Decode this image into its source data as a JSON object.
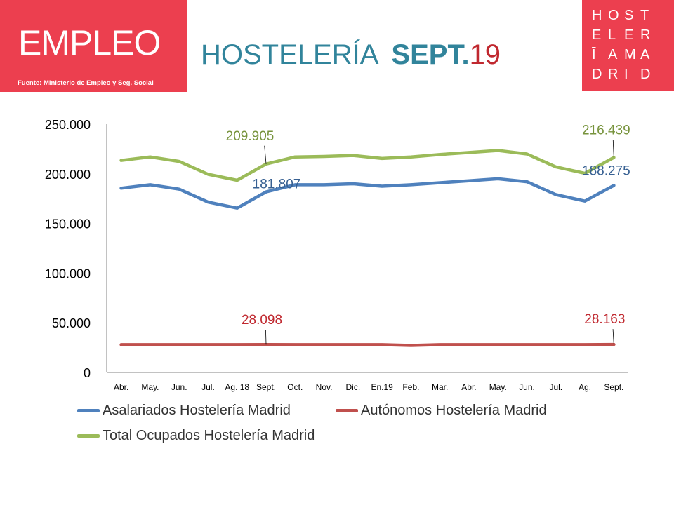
{
  "header": {
    "title": "EMPLEO",
    "source": "Fuente: Ministerio de Empleo y Seg. Social",
    "heading_main": "HOSTELERÍA",
    "heading_month": "SEPT.",
    "heading_year": "19"
  },
  "logo": {
    "letters": [
      "H",
      "O",
      "S",
      "T",
      "",
      "E",
      "L",
      "E",
      "R",
      "",
      "Ī",
      "A",
      "M",
      "A",
      "",
      "D",
      "R",
      "I",
      "D",
      ""
    ]
  },
  "colors": {
    "brand_red": "#ec3f4f",
    "heading_teal": "#31849b",
    "heading_red": "#c0282f"
  },
  "chart_data": {
    "type": "line",
    "categories": [
      "Abr.",
      "May.",
      "Jun.",
      "Jul.",
      "Ag. 18",
      "Sept.",
      "Oct.",
      "Nov.",
      "Dic.",
      "En.19",
      "Feb.",
      "Mar.",
      "Abr.",
      "May.",
      "Jun.",
      "Jul.",
      "Ag.",
      "Sept."
    ],
    "ylim": [
      0,
      250000
    ],
    "yticks": [
      0,
      50000,
      100000,
      150000,
      200000,
      250000
    ],
    "ytick_labels": [
      "0",
      "50.000",
      "100.000",
      "150.000",
      "200.000",
      "250.000"
    ],
    "legend_position": "bottom",
    "series": [
      {
        "name": "Asalariados Hostelería Madrid",
        "color": "#4f81bd",
        "values": [
          185500,
          189000,
          184500,
          171500,
          165500,
          181807,
          189000,
          189000,
          190000,
          187500,
          189000,
          191000,
          193000,
          195000,
          192000,
          179000,
          172500,
          188275
        ]
      },
      {
        "name": "Autónomos Hostelería Madrid",
        "color": "#c0504d",
        "values": [
          28000,
          28000,
          28000,
          28000,
          28000,
          28098,
          28000,
          28000,
          28000,
          28000,
          27200,
          28000,
          28000,
          28000,
          28000,
          28000,
          28000,
          28163
        ]
      },
      {
        "name": "Total Ocupados Hostelería Madrid",
        "color": "#9bbb59",
        "values": [
          213500,
          217000,
          212500,
          199500,
          193500,
          209905,
          217000,
          217500,
          218500,
          215500,
          217000,
          219500,
          221500,
          223500,
          220000,
          207000,
          200500,
          216439
        ]
      }
    ],
    "annotations": [
      {
        "series": 2,
        "index": 5,
        "text": "209.905",
        "color": "#77933c"
      },
      {
        "series": 0,
        "index": 5,
        "text": "181.807",
        "color": "#376092"
      },
      {
        "series": 1,
        "index": 5,
        "text": "28.098",
        "color": "#c0282f"
      },
      {
        "series": 2,
        "index": 17,
        "text": "216.439",
        "color": "#77933c"
      },
      {
        "series": 0,
        "index": 17,
        "text": "188.275",
        "color": "#376092"
      },
      {
        "series": 1,
        "index": 17,
        "text": "28.163",
        "color": "#c0282f"
      }
    ]
  }
}
